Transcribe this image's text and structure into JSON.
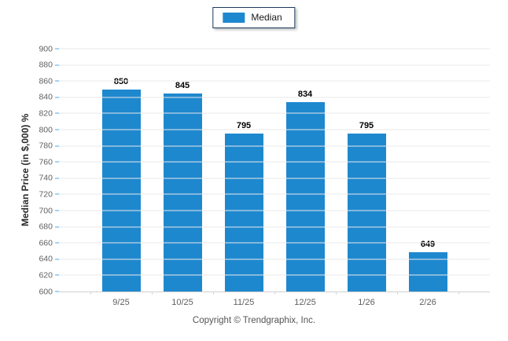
{
  "legend": {
    "label": "Median"
  },
  "footer": {
    "copyright": "Copyright © Trendgraphix, Inc."
  },
  "colors": {
    "bar": "#1e88cf",
    "legend_border": "#1c3a5e",
    "gridline": "#e9e9e9",
    "axis_line": "#cfcfcf",
    "left_tick": "#a6d2f0",
    "tick_text": "#5f5f5f",
    "value_label": "#000000"
  },
  "chart_data": {
    "type": "bar",
    "title": "",
    "categories": [
      "9/25",
      "10/25",
      "11/25",
      "12/25",
      "1/26",
      "2/26"
    ],
    "series": [
      {
        "name": "Median",
        "values": [
          850,
          845,
          795,
          834,
          795,
          649
        ]
      }
    ],
    "xlabel": "",
    "ylabel": "Median Price (in $,000) %",
    "ylim": [
      600,
      900
    ],
    "ytick_step": 20,
    "grid": true,
    "legend_position": "top-center",
    "value_labels": true
  }
}
